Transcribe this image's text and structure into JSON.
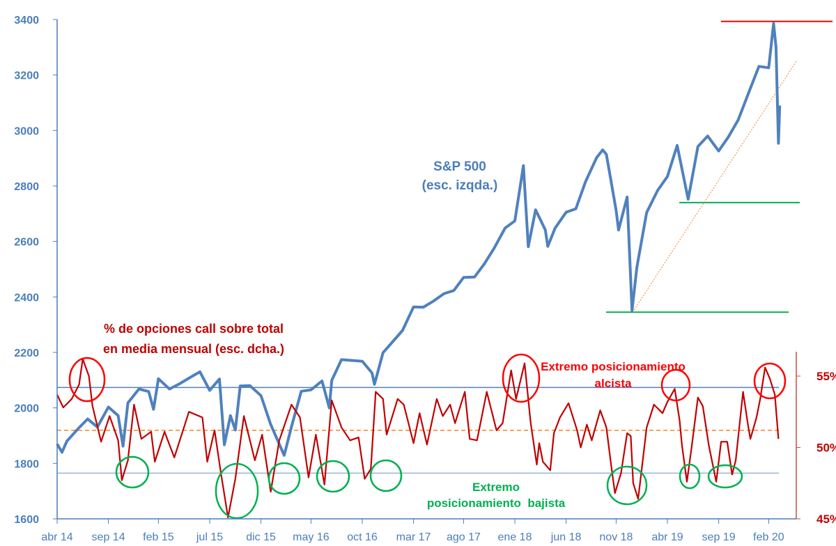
{
  "chart_data": {
    "type": "line",
    "title": "",
    "x_axis": {
      "ticks": [
        {
          "label": "abr 14",
          "x": 2014.25
        },
        {
          "label": "sep 14",
          "x": 2014.67
        },
        {
          "label": "feb 15",
          "x": 2015.08
        },
        {
          "label": "jul 15",
          "x": 2015.5
        },
        {
          "label": "dic 15",
          "x": 2015.92
        },
        {
          "label": "may 16",
          "x": 2016.33
        },
        {
          "label": "oct 16",
          "x": 2016.75
        },
        {
          "label": "mar 17",
          "x": 2017.17
        },
        {
          "label": "ago 17",
          "x": 2017.58
        },
        {
          "label": "ene 18",
          "x": 2018.0
        },
        {
          "label": "jun 18",
          "x": 2018.42
        },
        {
          "label": "nov 18",
          "x": 2018.83
        },
        {
          "label": "abr 19",
          "x": 2019.25
        },
        {
          "label": "sep 19",
          "x": 2019.67
        },
        {
          "label": "feb 20",
          "x": 2020.08
        }
      ],
      "range": [
        2014.25,
        2020.33
      ]
    },
    "y_left": {
      "range": [
        1600,
        3400
      ],
      "ticks": [
        "1600",
        "1800",
        "2000",
        "2200",
        "2400",
        "2600",
        "2800",
        "3000",
        "3200",
        "3400"
      ]
    },
    "y_right": {
      "range": [
        45,
        56.7
      ],
      "ticks": [
        {
          "label": "45%",
          "v": 45
        },
        {
          "label": "50%",
          "v": 50
        },
        {
          "label": "55%",
          "v": 55
        }
      ]
    },
    "series": [
      {
        "name": "S&P 500",
        "axis": "left",
        "color": "#4f81bd",
        "points": [
          [
            2014.25,
            1870
          ],
          [
            2014.29,
            1840
          ],
          [
            2014.33,
            1880
          ],
          [
            2014.42,
            1924
          ],
          [
            2014.5,
            1960
          ],
          [
            2014.58,
            1931
          ],
          [
            2014.67,
            2003
          ],
          [
            2014.75,
            1972
          ],
          [
            2014.79,
            1862
          ],
          [
            2014.83,
            2018
          ],
          [
            2014.92,
            2068
          ],
          [
            2015.0,
            2059
          ],
          [
            2015.04,
            1995
          ],
          [
            2015.08,
            2105
          ],
          [
            2015.17,
            2068
          ],
          [
            2015.25,
            2086
          ],
          [
            2015.33,
            2107
          ],
          [
            2015.42,
            2130
          ],
          [
            2015.5,
            2063
          ],
          [
            2015.58,
            2104
          ],
          [
            2015.62,
            1867
          ],
          [
            2015.67,
            1972
          ],
          [
            2015.71,
            1920
          ],
          [
            2015.75,
            2079
          ],
          [
            2015.83,
            2080
          ],
          [
            2015.92,
            2044
          ],
          [
            2016.0,
            1940
          ],
          [
            2016.11,
            1829
          ],
          [
            2016.17,
            1932
          ],
          [
            2016.25,
            2060
          ],
          [
            2016.33,
            2065
          ],
          [
            2016.42,
            2097
          ],
          [
            2016.48,
            2000
          ],
          [
            2016.5,
            2099
          ],
          [
            2016.58,
            2174
          ],
          [
            2016.67,
            2171
          ],
          [
            2016.75,
            2168
          ],
          [
            2016.83,
            2126
          ],
          [
            2016.85,
            2085
          ],
          [
            2016.92,
            2199
          ],
          [
            2017.0,
            2239
          ],
          [
            2017.08,
            2279
          ],
          [
            2017.17,
            2364
          ],
          [
            2017.25,
            2363
          ],
          [
            2017.33,
            2384
          ],
          [
            2017.42,
            2412
          ],
          [
            2017.5,
            2423
          ],
          [
            2017.58,
            2470
          ],
          [
            2017.67,
            2472
          ],
          [
            2017.75,
            2519
          ],
          [
            2017.83,
            2575
          ],
          [
            2017.92,
            2648
          ],
          [
            2018.0,
            2674
          ],
          [
            2018.07,
            2873
          ],
          [
            2018.11,
            2581
          ],
          [
            2018.17,
            2714
          ],
          [
            2018.25,
            2641
          ],
          [
            2018.27,
            2582
          ],
          [
            2018.33,
            2648
          ],
          [
            2018.42,
            2705
          ],
          [
            2018.5,
            2718
          ],
          [
            2018.58,
            2816
          ],
          [
            2018.67,
            2902
          ],
          [
            2018.72,
            2930
          ],
          [
            2018.75,
            2914
          ],
          [
            2018.83,
            2712
          ],
          [
            2018.85,
            2641
          ],
          [
            2018.92,
            2760
          ],
          [
            2018.96,
            2351
          ],
          [
            2019.0,
            2507
          ],
          [
            2019.08,
            2704
          ],
          [
            2019.17,
            2784
          ],
          [
            2019.25,
            2834
          ],
          [
            2019.33,
            2946
          ],
          [
            2019.42,
            2752
          ],
          [
            2019.5,
            2942
          ],
          [
            2019.58,
            2980
          ],
          [
            2019.67,
            2926
          ],
          [
            2019.75,
            2977
          ],
          [
            2019.83,
            3038
          ],
          [
            2019.92,
            3141
          ],
          [
            2020.0,
            3231
          ],
          [
            2020.08,
            3226
          ],
          [
            2020.12,
            3386
          ],
          [
            2020.14,
            3300
          ],
          [
            2020.16,
            2954
          ],
          [
            2020.17,
            3090
          ]
        ]
      },
      {
        "name": "% de opciones call sobre total (media mensual)",
        "axis": "right",
        "color": "#c00000",
        "points": [
          [
            2014.25,
            53.7
          ],
          [
            2014.3,
            52.8
          ],
          [
            2014.37,
            53.4
          ],
          [
            2014.43,
            54.4
          ],
          [
            2014.46,
            56.2
          ],
          [
            2014.51,
            55.0
          ],
          [
            2014.54,
            52.9
          ],
          [
            2014.61,
            50.4
          ],
          [
            2014.68,
            52.2
          ],
          [
            2014.75,
            50.5
          ],
          [
            2014.78,
            47.7
          ],
          [
            2014.83,
            49.1
          ],
          [
            2014.88,
            53.0
          ],
          [
            2014.94,
            50.6
          ],
          [
            2015.02,
            51.1
          ],
          [
            2015.05,
            49.0
          ],
          [
            2015.13,
            51.1
          ],
          [
            2015.21,
            49.3
          ],
          [
            2015.33,
            52.5
          ],
          [
            2015.44,
            52.1
          ],
          [
            2015.48,
            49.0
          ],
          [
            2015.54,
            51.2
          ],
          [
            2015.59,
            48.3
          ],
          [
            2015.65,
            45.1
          ],
          [
            2015.71,
            47.8
          ],
          [
            2015.78,
            52.2
          ],
          [
            2015.87,
            49.1
          ],
          [
            2015.93,
            50.9
          ],
          [
            2016.0,
            46.9
          ],
          [
            2016.07,
            50.5
          ],
          [
            2016.17,
            53.0
          ],
          [
            2016.24,
            52.1
          ],
          [
            2016.31,
            47.9
          ],
          [
            2016.37,
            50.9
          ],
          [
            2016.44,
            47.4
          ],
          [
            2016.5,
            53.3
          ],
          [
            2016.58,
            51.4
          ],
          [
            2016.65,
            50.5
          ],
          [
            2016.72,
            50.7
          ],
          [
            2016.77,
            47.8
          ],
          [
            2016.82,
            48.5
          ],
          [
            2016.86,
            53.9
          ],
          [
            2016.92,
            53.4
          ],
          [
            2016.95,
            50.9
          ],
          [
            2017.04,
            53.4
          ],
          [
            2017.09,
            53.0
          ],
          [
            2017.17,
            50.3
          ],
          [
            2017.22,
            52.4
          ],
          [
            2017.28,
            50.2
          ],
          [
            2017.36,
            53.4
          ],
          [
            2017.41,
            52.2
          ],
          [
            2017.47,
            53.0
          ],
          [
            2017.51,
            51.7
          ],
          [
            2017.59,
            53.9
          ],
          [
            2017.63,
            50.6
          ],
          [
            2017.69,
            50.5
          ],
          [
            2017.77,
            53.9
          ],
          [
            2017.85,
            51.2
          ],
          [
            2017.9,
            51.7
          ],
          [
            2017.97,
            55.4
          ],
          [
            2018.01,
            53.4
          ],
          [
            2018.08,
            55.9
          ],
          [
            2018.13,
            51.7
          ],
          [
            2018.18,
            48.8
          ],
          [
            2018.2,
            50.3
          ],
          [
            2018.23,
            49.0
          ],
          [
            2018.29,
            48.4
          ],
          [
            2018.32,
            51.0
          ],
          [
            2018.37,
            52.1
          ],
          [
            2018.44,
            53.1
          ],
          [
            2018.51,
            51.2
          ],
          [
            2018.54,
            50.0
          ],
          [
            2018.59,
            51.6
          ],
          [
            2018.63,
            50.5
          ],
          [
            2018.7,
            52.6
          ],
          [
            2018.75,
            51.4
          ],
          [
            2018.79,
            48.7
          ],
          [
            2018.82,
            46.8
          ],
          [
            2018.87,
            48.2
          ],
          [
            2018.92,
            51.0
          ],
          [
            2018.95,
            50.8
          ],
          [
            2018.97,
            47.5
          ],
          [
            2019.01,
            46.4
          ],
          [
            2019.04,
            48.5
          ],
          [
            2019.08,
            51.4
          ],
          [
            2019.14,
            53.0
          ],
          [
            2019.21,
            52.4
          ],
          [
            2019.25,
            53.2
          ],
          [
            2019.31,
            54.1
          ],
          [
            2019.35,
            51.9
          ],
          [
            2019.37,
            50.1
          ],
          [
            2019.41,
            47.6
          ],
          [
            2019.45,
            50.1
          ],
          [
            2019.5,
            53.5
          ],
          [
            2019.54,
            52.9
          ],
          [
            2019.59,
            50.1
          ],
          [
            2019.65,
            47.6
          ],
          [
            2019.69,
            50.4
          ],
          [
            2019.74,
            50.4
          ],
          [
            2019.78,
            48.1
          ],
          [
            2019.81,
            49.1
          ],
          [
            2019.87,
            53.9
          ],
          [
            2019.91,
            51.6
          ],
          [
            2019.93,
            50.6
          ],
          [
            2019.98,
            52.1
          ],
          [
            2020.01,
            53.4
          ],
          [
            2020.05,
            55.6
          ],
          [
            2020.09,
            54.8
          ],
          [
            2020.13,
            53.7
          ],
          [
            2020.16,
            50.6
          ]
        ]
      }
    ],
    "reference_lines": {
      "upper_extreme_pct": 54.2,
      "lower_extreme_pct": 48.2,
      "average_pct": 51.2,
      "sp_peak": 3393,
      "sp_support": 2740,
      "sp_low": 2345
    },
    "annotations": {
      "sp_label": [
        "S&P 500",
        "(esc. izqda.)"
      ],
      "calls_label": [
        "% de opciones call sobre total",
        "en media mensual (esc. dcha.)"
      ],
      "bull_label": [
        "Extremo posicionamiento",
        "alcista"
      ],
      "bear_label": [
        "Extremo",
        "posicionamiento  bajista"
      ]
    },
    "colors": {
      "sp": "#4f81bd",
      "calls": "#c00000",
      "green": "#00b050",
      "orange": "#f79646",
      "axis": "#4a7ebb"
    }
  }
}
